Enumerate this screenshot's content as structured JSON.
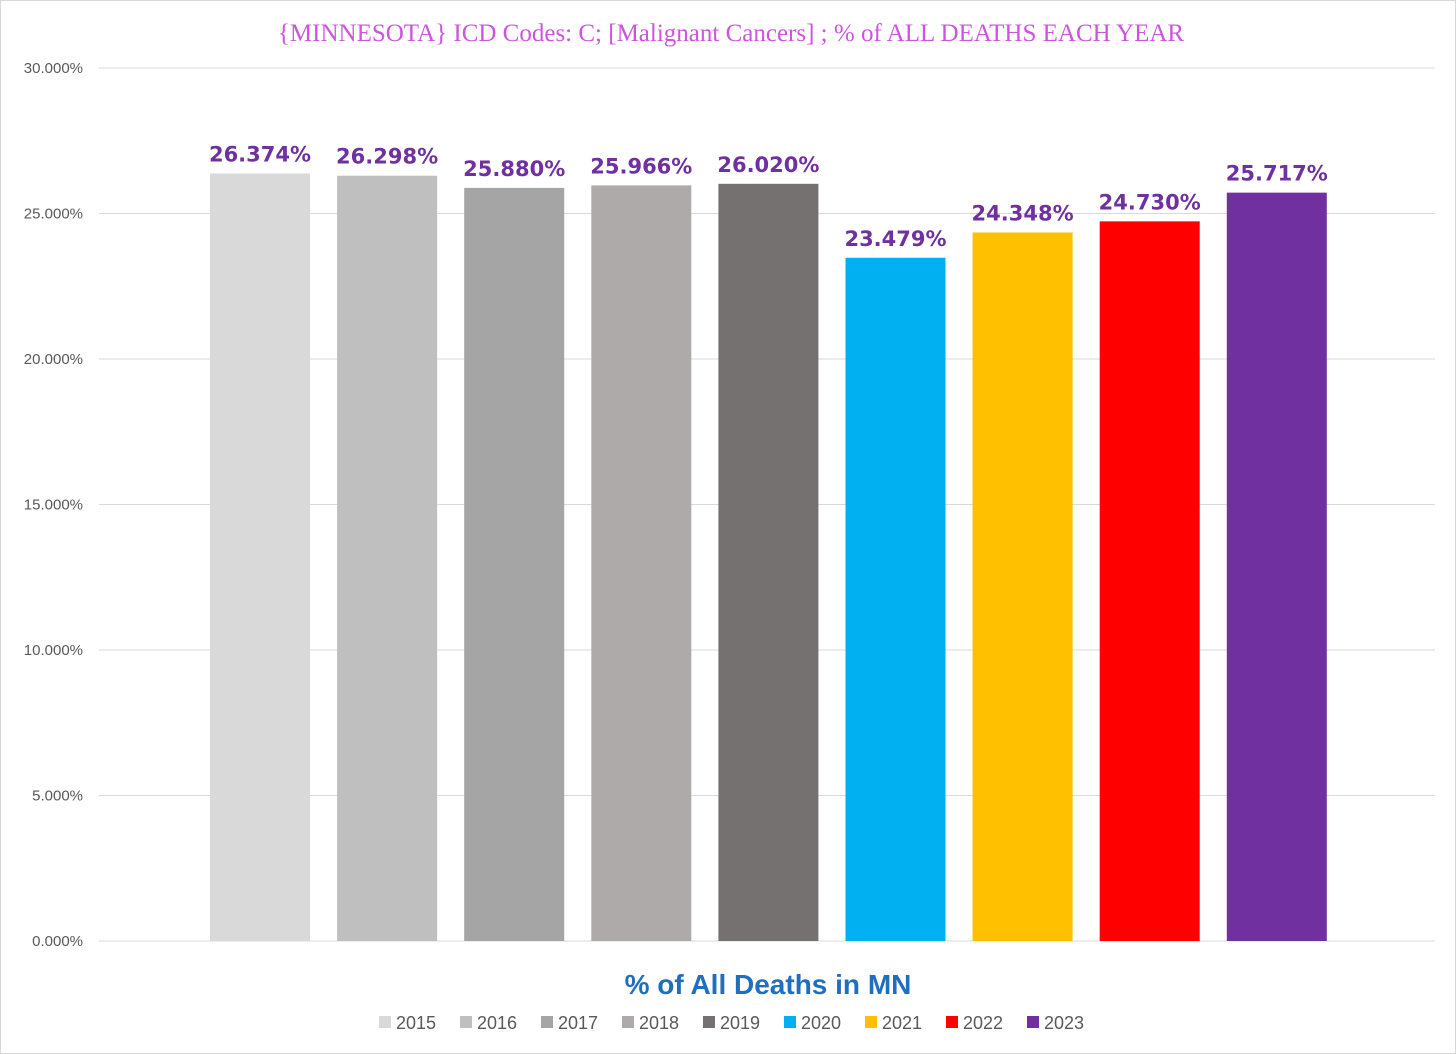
{
  "chart_data": {
    "type": "bar",
    "title": "{MINNESOTA}  ICD Codes: C;  [Malignant Cancers] ; % of ALL DEATHS EACH YEAR",
    "xlabel": "% of All Deaths in MN",
    "ylabel": "",
    "ylim": [
      0,
      30
    ],
    "yticks": [
      0,
      5,
      10,
      15,
      20,
      25,
      30
    ],
    "ytick_labels": [
      "0.000%",
      "5.000%",
      "10.000%",
      "15.000%",
      "20.000%",
      "25.000%",
      "30.000%"
    ],
    "grid": true,
    "legend_position": "bottom",
    "series": [
      {
        "name": "2015",
        "value": 26.374,
        "label": "26.374%",
        "color": "#d9d9d9"
      },
      {
        "name": "2016",
        "value": 26.298,
        "label": "26.298%",
        "color": "#bfbfbf"
      },
      {
        "name": "2017",
        "value": 25.88,
        "label": "25.880%",
        "color": "#a5a5a5"
      },
      {
        "name": "2018",
        "value": 25.966,
        "label": "25.966%",
        "color": "#aeaaaa"
      },
      {
        "name": "2019",
        "value": 26.02,
        "label": "26.020%",
        "color": "#767171"
      },
      {
        "name": "2020",
        "value": 23.479,
        "label": "23.479%",
        "color": "#00b0f0"
      },
      {
        "name": "2021",
        "value": 24.348,
        "label": "24.348%",
        "color": "#ffc000"
      },
      {
        "name": "2022",
        "value": 24.73,
        "label": "24.730%",
        "color": "#ff0000"
      },
      {
        "name": "2023",
        "value": 25.717,
        "label": "25.717%",
        "color": "#7030a0"
      }
    ]
  }
}
